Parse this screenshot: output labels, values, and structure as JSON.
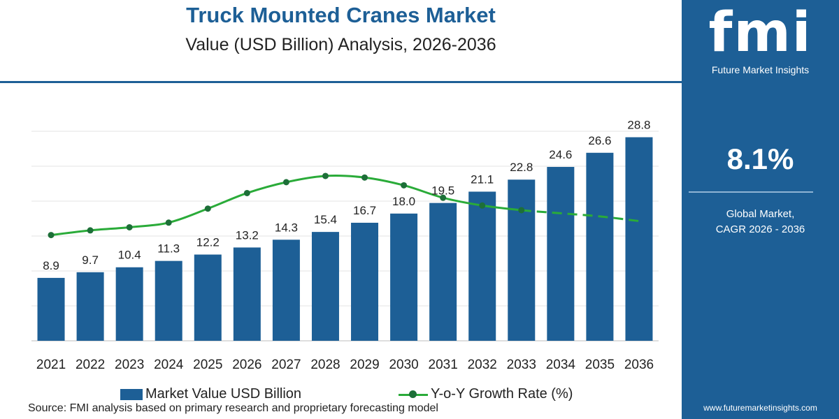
{
  "header": {
    "title": "Truck Mounted Cranes Market",
    "subtitle": "Value (USD Billion) Analysis, 2026-2036"
  },
  "legend": {
    "bar_label": "Market Value USD Billion",
    "line_label": "Y-o-Y Growth Rate (%)"
  },
  "source": "Source: FMI analysis based on primary research and proprietary forecasting model",
  "side_panel": {
    "logo_text": "fmi",
    "logo_tagline": "Future Market Insights",
    "cagr_value": "8.1%",
    "cagr_label": "Global Market,\nCAGR 2026 - 2036",
    "website": "www.futuremarketinsights.com"
  },
  "colors": {
    "bar": "#1d5f96",
    "line": "#2aab39",
    "marker": "#1d6f38",
    "panel": "#1d5f96"
  },
  "chart_data": {
    "type": "bar",
    "title": "Truck Mounted Cranes Market",
    "categories": [
      "2021",
      "2022",
      "2023",
      "2024",
      "2025",
      "2026",
      "2027",
      "2028",
      "2029",
      "2030",
      "2031",
      "2032",
      "2033",
      "2034",
      "2035",
      "2036"
    ],
    "series": [
      {
        "name": "Market Value USD Billion",
        "type": "bar",
        "values": [
          8.9,
          9.7,
          10.4,
          11.3,
          12.2,
          13.2,
          14.3,
          15.4,
          16.7,
          18.0,
          19.5,
          21.1,
          22.8,
          24.6,
          26.6,
          28.8
        ]
      },
      {
        "name": "Y-o-Y Growth Rate (%)",
        "type": "line",
        "values": [
          6.8,
          7.1,
          7.3,
          7.6,
          8.5,
          9.5,
          10.2,
          10.6,
          10.5,
          10.0,
          9.2,
          8.7,
          8.4,
          8.2,
          8.0,
          7.7
        ],
        "solid_through": "2033",
        "dashed_from": "2033"
      }
    ],
    "ylim": [
      0,
      33
    ],
    "y2lim": [
      0,
      15
    ],
    "grid": true,
    "legend_position": "bottom"
  }
}
